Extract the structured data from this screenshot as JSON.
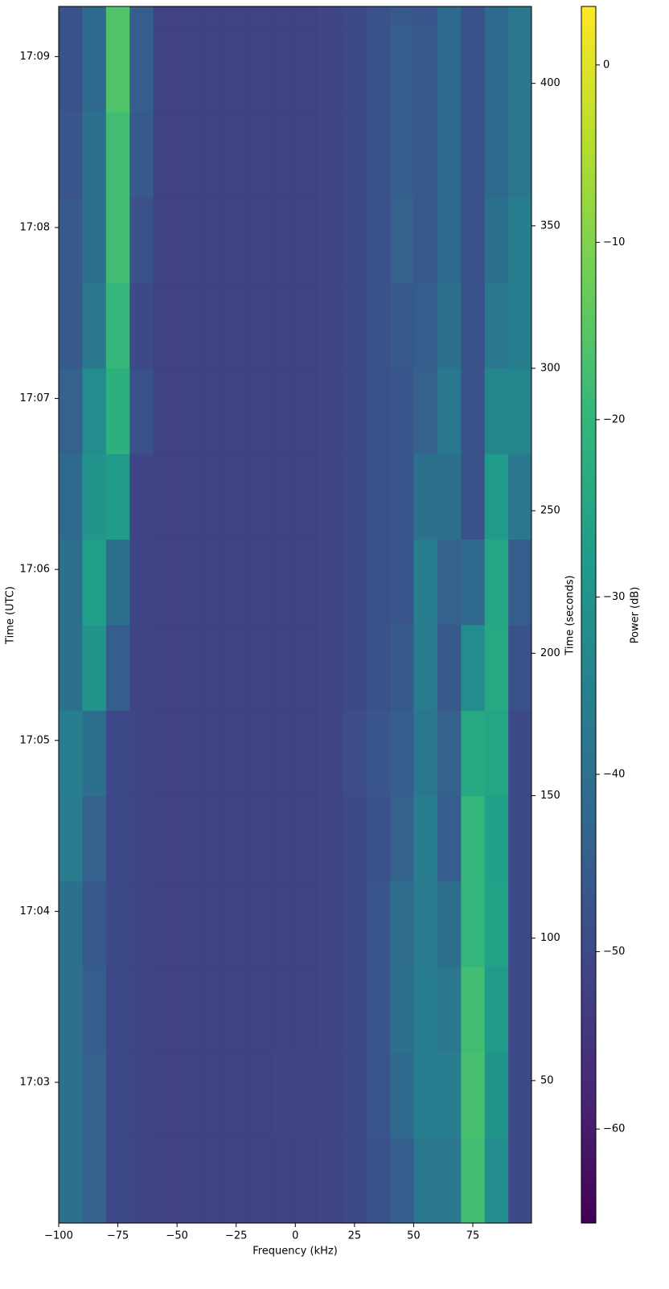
{
  "chart_data": {
    "type": "heatmap",
    "xlabel": "Frequency (kHz)",
    "ylabel": "Time (seconds)",
    "y2label": "Time (UTC)",
    "colorbar_label": "Power (dB)",
    "x_bins": [
      -100,
      -90,
      -80,
      -70,
      -60,
      -50,
      -40,
      -30,
      -20,
      -10,
      0,
      10,
      20,
      30,
      40,
      50,
      60,
      70,
      80,
      90,
      99.8
    ],
    "y_bins": [
      0,
      30,
      60,
      90,
      120,
      150,
      180,
      210,
      240,
      270,
      300,
      330,
      360,
      390,
      420,
      427
    ],
    "z": [
      [
        -40,
        -44,
        -50,
        -51,
        -52,
        -52,
        -52,
        -52,
        -52,
        -52,
        -52,
        -51,
        -50,
        -48,
        -45,
        -38,
        -38,
        -18,
        -32,
        -50
      ],
      [
        -40,
        -44,
        -50,
        -51,
        -52,
        -52,
        -52,
        -52,
        -52,
        -51,
        -51,
        -51,
        -50,
        -47,
        -42,
        -36,
        -36,
        -17,
        -30,
        -50
      ],
      [
        -40,
        -45,
        -50,
        -51,
        -52,
        -52,
        -52,
        -52,
        -52,
        -52,
        -52,
        -51,
        -50,
        -47,
        -40,
        -36,
        -38,
        -18,
        -28,
        -50
      ],
      [
        -40,
        -46,
        -50,
        -51,
        -52,
        -52,
        -52,
        -52,
        -52,
        -52,
        -52,
        -51,
        -50,
        -47,
        -41,
        -37,
        -40,
        -20,
        -26,
        -50
      ],
      [
        -37,
        -44,
        -50,
        -51,
        -52,
        -52,
        -52,
        -52,
        -52,
        -52,
        -52,
        -51,
        -50,
        -48,
        -44,
        -36,
        -45,
        -20,
        -27,
        -50
      ],
      [
        -36,
        -40,
        -50,
        -51,
        -52,
        -52,
        -52,
        -52,
        -52,
        -52,
        -52,
        -51,
        -49,
        -47,
        -45,
        -38,
        -44,
        -24,
        -25,
        -50
      ],
      [
        -40,
        -30,
        -45,
        -51,
        -52,
        -52,
        -52,
        -52,
        -52,
        -52,
        -52,
        -51,
        -50,
        -48,
        -46,
        -37,
        -46,
        -32,
        -24,
        -48
      ],
      [
        -40,
        -27,
        -40,
        -51,
        -52,
        -52,
        -52,
        -52,
        -52,
        -52,
        -52,
        -51,
        -50,
        -48,
        -47,
        -36,
        -44,
        -42,
        -25,
        -45
      ],
      [
        -42,
        -30,
        -28,
        -51,
        -52,
        -52,
        -52,
        -52,
        -52,
        -52,
        -52,
        -51,
        -50,
        -48,
        -47,
        -40,
        -40,
        -48,
        -28,
        -38
      ],
      [
        -44,
        -32,
        -22,
        -48,
        -52,
        -52,
        -52,
        -52,
        -52,
        -52,
        -52,
        -51,
        -50,
        -48,
        -47,
        -44,
        -38,
        -48,
        -34,
        -34
      ],
      [
        -46,
        -38,
        -20,
        -50,
        -52,
        -52,
        -52,
        -52,
        -52,
        -52,
        -52,
        -51,
        -50,
        -48,
        -46,
        -45,
        -40,
        -48,
        -38,
        -36
      ],
      [
        -46,
        -40,
        -18,
        -48,
        -52,
        -52,
        -52,
        -52,
        -52,
        -52,
        -52,
        -51,
        -50,
        -48,
        -44,
        -46,
        -42,
        -48,
        -40,
        -36
      ],
      [
        -47,
        -40,
        -18,
        -46,
        -52,
        -52,
        -52,
        -52,
        -52,
        -52,
        -52,
        -51,
        -50,
        -48,
        -45,
        -46,
        -42,
        -48,
        -42,
        -38
      ],
      [
        -48,
        -42,
        -16,
        -45,
        -52,
        -52,
        -52,
        -52,
        -52,
        -52,
        -52,
        -51,
        -50,
        -48,
        -45,
        -46,
        -42,
        -48,
        -42,
        -38
      ],
      [
        -48,
        -42,
        -16,
        -45,
        -52,
        -52,
        -52,
        -52,
        -52,
        -52,
        -52,
        -51,
        -50,
        -48,
        -46,
        -47,
        -42,
        -48,
        -42,
        -38
      ]
    ],
    "xlim": [
      -100,
      99.8
    ],
    "xticks": [
      {
        "value": -100,
        "label": "−100"
      },
      {
        "value": -75,
        "label": "−75"
      },
      {
        "value": -50,
        "label": "−50"
      },
      {
        "value": -25,
        "label": "−25"
      },
      0,
      25,
      50,
      75
    ],
    "ylim": [
      0,
      427
    ],
    "yticks": [
      50,
      100,
      150,
      200,
      250,
      300,
      350,
      400
    ],
    "y2lim": [
      0,
      427
    ],
    "y2ticks": [
      {
        "value": 49.4,
        "label": "17:03"
      },
      {
        "value": 109.4,
        "label": "17:04"
      },
      {
        "value": 169.4,
        "label": "17:05"
      },
      {
        "value": 229.4,
        "label": "17:06"
      },
      {
        "value": 289.4,
        "label": "17:07"
      },
      {
        "value": 349.4,
        "label": "17:08"
      },
      {
        "value": 409.4,
        "label": "17:09"
      }
    ],
    "clim": [
      -65.3,
      3.3
    ],
    "cticks": [
      {
        "value": -60,
        "label": "−60"
      },
      {
        "value": -50,
        "label": "−50"
      },
      {
        "value": -40,
        "label": "−40"
      },
      {
        "value": -30,
        "label": "−30"
      },
      {
        "value": -20,
        "label": "−20"
      },
      {
        "value": -10,
        "label": "−10"
      },
      0
    ],
    "colormap": [
      "#440154",
      "#482878",
      "#3e4989",
      "#31688e",
      "#26828e",
      "#1f9e89",
      "#35b779",
      "#6ece58",
      "#b5de2b",
      "#fde725"
    ]
  }
}
